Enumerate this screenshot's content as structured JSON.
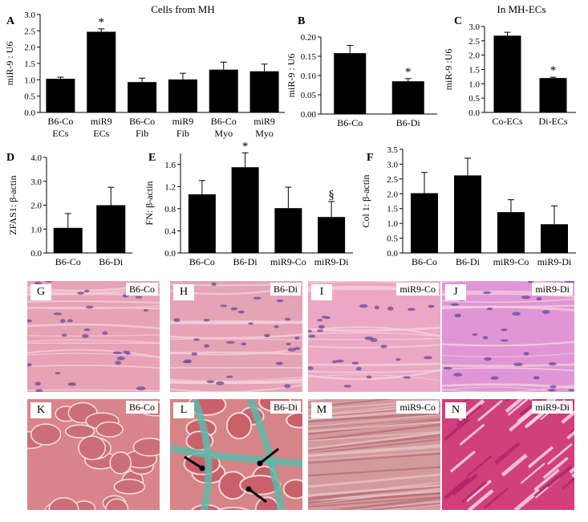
{
  "chart_data": [
    {
      "id": "A",
      "type": "bar",
      "panel_label": "A",
      "title": "Cells from MH",
      "categories": [
        [
          "B6-Co",
          "ECs"
        ],
        [
          "miR9",
          "ECs"
        ],
        [
          "B6-Co",
          "Fib"
        ],
        [
          "miR9",
          "Fib"
        ],
        [
          "B6-Co",
          "Myo"
        ],
        [
          "miR9",
          "Myo"
        ]
      ],
      "values": [
        1.03,
        2.47,
        0.93,
        1.01,
        1.31,
        1.26
      ],
      "errors": [
        0.05,
        0.09,
        0.12,
        0.19,
        0.23,
        0.22
      ],
      "marks": [
        "",
        "*",
        "",
        "",
        "",
        ""
      ],
      "ylabel": "miR-9 : U6",
      "ylim": [
        0,
        3.0
      ],
      "yticks": [
        "0.0",
        "0.5",
        "1.0",
        "1.5",
        "2.0",
        "2.5",
        "3.0"
      ]
    },
    {
      "id": "B",
      "type": "bar",
      "panel_label": "B",
      "title": "",
      "categories": [
        [
          "B6-Co"
        ],
        [
          "B6-Di"
        ]
      ],
      "values": [
        0.158,
        0.085
      ],
      "errors": [
        0.02,
        0.007
      ],
      "marks": [
        "",
        "*"
      ],
      "ylabel": "miR-9 : U6",
      "ylim": [
        0,
        0.2
      ],
      "yticks": [
        "0.00",
        "0.05",
        "0.10",
        "0.15",
        "0.20"
      ]
    },
    {
      "id": "C",
      "type": "bar",
      "panel_label": "C",
      "title": "In MH-ECs",
      "categories": [
        [
          "Co-ECs"
        ],
        [
          "Di-ECs"
        ]
      ],
      "values": [
        2.68,
        1.2
      ],
      "errors": [
        0.12,
        0.03
      ],
      "marks": [
        "",
        "*"
      ],
      "ylabel": "miR-9 :U6",
      "ylim": [
        0,
        3.0
      ],
      "yticks": [
        "0.0",
        "0.5",
        "1.0",
        "1.5",
        "2.0",
        "2.5",
        "3.0"
      ]
    },
    {
      "id": "D",
      "type": "bar",
      "panel_label": "D",
      "title": "",
      "categories": [
        [
          "B6-Co"
        ],
        [
          "B6-Di"
        ]
      ],
      "values": [
        1.05,
        2.0
      ],
      "errors": [
        0.6,
        0.75
      ],
      "marks": [
        "",
        ""
      ],
      "ylabel": "ZFAS1: β-actin",
      "ylim": [
        0,
        4.0
      ],
      "yticks": [
        "0.0",
        "1.0",
        "2.0",
        "3.0",
        "4.0"
      ]
    },
    {
      "id": "E",
      "type": "bar",
      "panel_label": "E",
      "title": "",
      "categories": [
        [
          "B6-Co"
        ],
        [
          "B6-Di"
        ],
        [
          "miR9-Co"
        ],
        [
          "miR9-Di"
        ]
      ],
      "values": [
        1.06,
        1.55,
        0.81,
        0.65
      ],
      "errors": [
        0.25,
        0.26,
        0.38,
        0.28
      ],
      "marks": [
        "",
        "*",
        "",
        "§"
      ],
      "ylabel": "FN: β-actin",
      "ylim": [
        0,
        1.8
      ],
      "yticks": [
        "0.0",
        "0.4",
        "0.8",
        "1.2",
        "1.6"
      ]
    },
    {
      "id": "F",
      "type": "bar",
      "panel_label": "F",
      "title": "",
      "categories": [
        [
          "B6-Co"
        ],
        [
          "B6-Di"
        ],
        [
          "miR9-Co"
        ],
        [
          "miR9-Di"
        ]
      ],
      "values": [
        2.02,
        2.62,
        1.38,
        0.97
      ],
      "errors": [
        0.7,
        0.58,
        0.42,
        0.62
      ],
      "marks": [
        "",
        "",
        "",
        ""
      ],
      "ylabel": "Col 1: β-actin",
      "ylim": [
        0,
        3.5
      ],
      "yticks": [
        "0.0",
        "0.5",
        "1.0",
        "1.5",
        "2.0",
        "2.5",
        "3.0",
        "3.5"
      ]
    }
  ],
  "photos": [
    {
      "label": "G",
      "caption": "B6-Co",
      "stain": "he",
      "bg": "#e7a2b4"
    },
    {
      "label": "H",
      "caption": "B6-Di",
      "stain": "he",
      "bg": "#e5a3b6"
    },
    {
      "label": "I",
      "caption": "miR9-Co",
      "stain": "he",
      "bg": "#eba7c4"
    },
    {
      "label": "J",
      "caption": "miR9-Di",
      "stain": "he",
      "bg": "#e096d6"
    },
    {
      "label": "K",
      "caption": "B6-Co",
      "stain": "trichrome",
      "bg": "#d9848a"
    },
    {
      "label": "L",
      "caption": "B6-Di",
      "stain": "trichrome-fibrosis",
      "bg": "#d68486"
    },
    {
      "label": "M",
      "caption": "miR9-Co",
      "stain": "trichrome-fiber",
      "bg": "#d39a9e"
    },
    {
      "label": "N",
      "caption": "miR9-Di",
      "stain": "trichrome-bright",
      "bg": "#d0407a"
    }
  ]
}
